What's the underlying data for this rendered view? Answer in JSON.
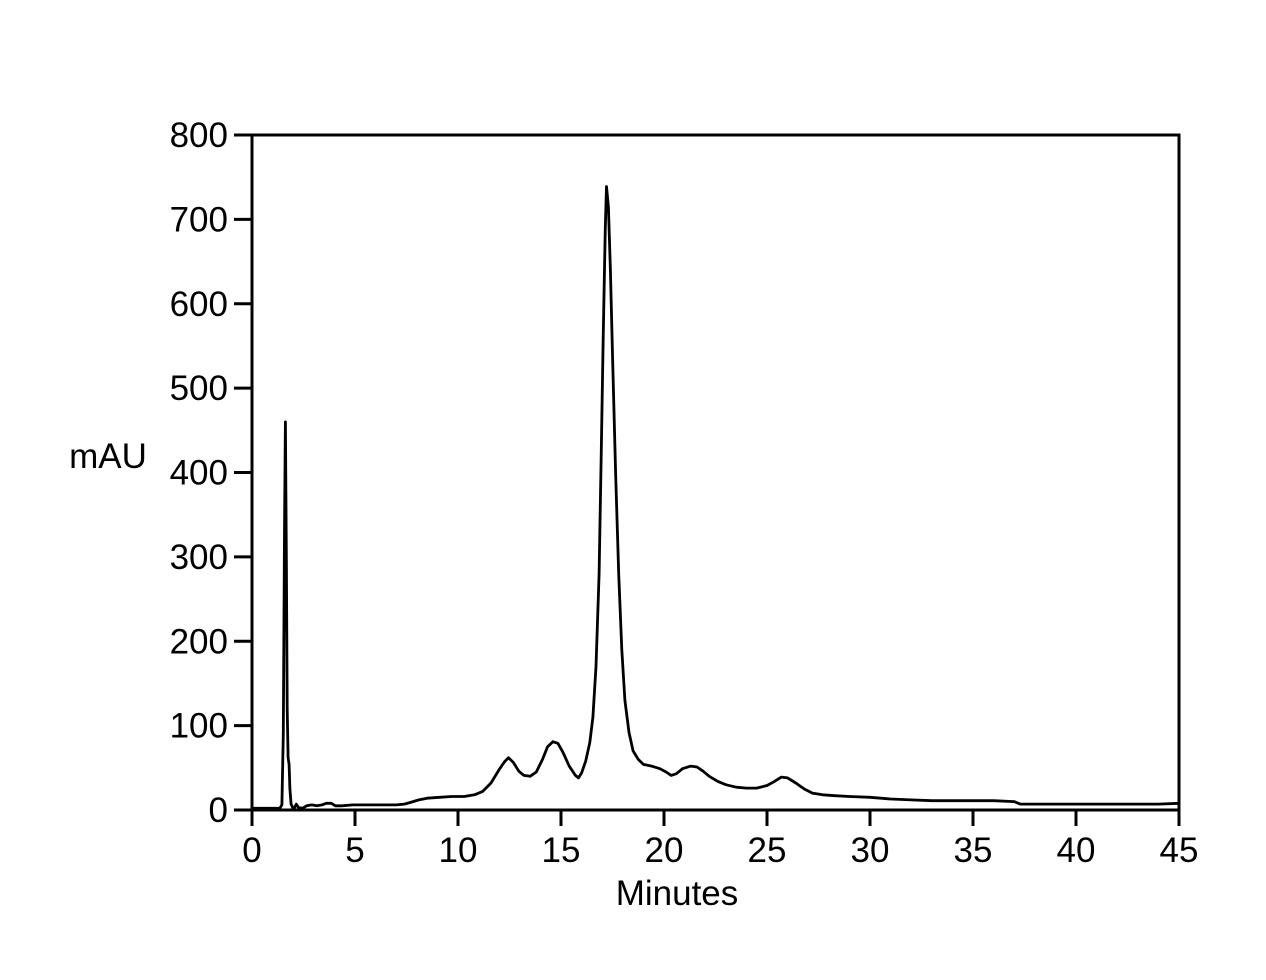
{
  "figure": {
    "background_color": "#ffffff",
    "frame_color": "#000000"
  },
  "chart_data": {
    "type": "line",
    "title": "",
    "xlabel": "Minutes",
    "ylabel": "mAU",
    "xlim": [
      0,
      45
    ],
    "ylim": [
      0,
      800
    ],
    "x_ticks": [
      0,
      5,
      10,
      15,
      20,
      25,
      30,
      35,
      40,
      45
    ],
    "y_ticks": [
      0,
      100,
      200,
      300,
      400,
      500,
      600,
      700,
      800
    ],
    "grid": false,
    "legend": null,
    "frame": "full-box",
    "series": [
      {
        "name": "detector-signal",
        "color": "#000000",
        "points": [
          [
            0,
            2
          ],
          [
            0.6,
            2
          ],
          [
            1.1,
            2
          ],
          [
            1.35,
            2
          ],
          [
            1.45,
            6
          ],
          [
            1.52,
            90
          ],
          [
            1.58,
            330
          ],
          [
            1.62,
            460
          ],
          [
            1.67,
            290
          ],
          [
            1.71,
            120
          ],
          [
            1.75,
            62
          ],
          [
            1.8,
            54
          ],
          [
            1.84,
            25
          ],
          [
            1.9,
            7
          ],
          [
            1.97,
            3
          ],
          [
            2.05,
            2
          ],
          [
            2.15,
            7
          ],
          [
            2.25,
            3
          ],
          [
            2.45,
            2
          ],
          [
            2.65,
            5
          ],
          [
            2.9,
            6
          ],
          [
            3.15,
            5
          ],
          [
            3.4,
            6
          ],
          [
            3.6,
            8
          ],
          [
            3.85,
            8
          ],
          [
            4.05,
            5
          ],
          [
            4.35,
            5
          ],
          [
            4.9,
            6
          ],
          [
            5.6,
            6
          ],
          [
            6.3,
            6
          ],
          [
            7.0,
            6
          ],
          [
            7.4,
            7
          ],
          [
            7.7,
            9
          ],
          [
            8.1,
            12
          ],
          [
            8.5,
            14
          ],
          [
            9.1,
            15
          ],
          [
            9.7,
            16
          ],
          [
            10.3,
            16
          ],
          [
            10.8,
            18
          ],
          [
            11.2,
            22
          ],
          [
            11.6,
            32
          ],
          [
            12.0,
            48
          ],
          [
            12.25,
            57
          ],
          [
            12.45,
            62
          ],
          [
            12.7,
            56
          ],
          [
            12.95,
            46
          ],
          [
            13.2,
            41
          ],
          [
            13.5,
            40
          ],
          [
            13.8,
            45
          ],
          [
            14.1,
            60
          ],
          [
            14.35,
            75
          ],
          [
            14.6,
            81
          ],
          [
            14.85,
            79
          ],
          [
            15.1,
            68
          ],
          [
            15.4,
            52
          ],
          [
            15.7,
            41
          ],
          [
            15.85,
            38
          ],
          [
            16.0,
            44
          ],
          [
            16.2,
            58
          ],
          [
            16.4,
            80
          ],
          [
            16.55,
            110
          ],
          [
            16.7,
            170
          ],
          [
            16.85,
            280
          ],
          [
            16.95,
            420
          ],
          [
            17.05,
            560
          ],
          [
            17.15,
            690
          ],
          [
            17.21,
            739
          ],
          [
            17.3,
            715
          ],
          [
            17.4,
            640
          ],
          [
            17.5,
            540
          ],
          [
            17.65,
            400
          ],
          [
            17.8,
            280
          ],
          [
            17.95,
            190
          ],
          [
            18.1,
            130
          ],
          [
            18.3,
            92
          ],
          [
            18.5,
            70
          ],
          [
            18.75,
            60
          ],
          [
            19.0,
            54
          ],
          [
            19.4,
            52
          ],
          [
            19.8,
            49
          ],
          [
            20.1,
            45
          ],
          [
            20.35,
            41
          ],
          [
            20.6,
            43
          ],
          [
            20.9,
            49
          ],
          [
            21.3,
            52
          ],
          [
            21.6,
            51
          ],
          [
            21.9,
            46
          ],
          [
            22.2,
            40
          ],
          [
            22.6,
            34
          ],
          [
            23.0,
            30
          ],
          [
            23.5,
            27
          ],
          [
            24.0,
            26
          ],
          [
            24.5,
            26
          ],
          [
            25.0,
            29
          ],
          [
            25.3,
            33
          ],
          [
            25.7,
            39
          ],
          [
            26.0,
            38
          ],
          [
            26.4,
            32
          ],
          [
            26.8,
            25
          ],
          [
            27.2,
            20
          ],
          [
            27.7,
            18
          ],
          [
            28.3,
            17
          ],
          [
            29.0,
            16
          ],
          [
            30.0,
            15
          ],
          [
            31.0,
            13
          ],
          [
            32.0,
            12
          ],
          [
            33.0,
            11
          ],
          [
            34.5,
            11
          ],
          [
            36.0,
            11
          ],
          [
            37.0,
            10
          ],
          [
            37.3,
            7
          ],
          [
            38.5,
            7
          ],
          [
            40.0,
            7
          ],
          [
            42.0,
            7
          ],
          [
            44.0,
            7
          ],
          [
            45.0,
            8
          ]
        ]
      }
    ]
  }
}
